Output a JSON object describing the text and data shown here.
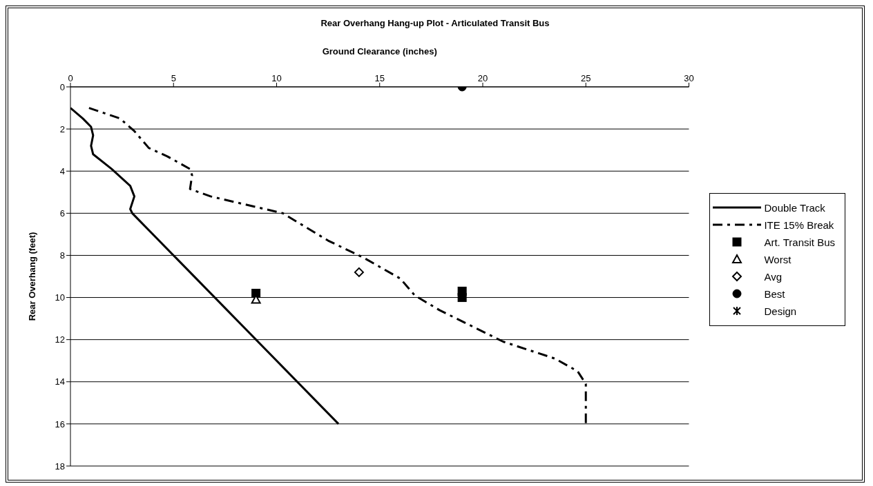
{
  "chart_data": {
    "type": "scatter",
    "title": "Rear Overhang Hang-up Plot - Articulated Transit Bus",
    "xlabel": "Ground Clearance (inches)",
    "ylabel": "Rear Overhang (feet)",
    "xlim": [
      0,
      30
    ],
    "xticks": [
      0,
      5,
      10,
      15,
      20,
      25,
      30
    ],
    "ylim": [
      18,
      0
    ],
    "yticks": [
      0,
      2,
      4,
      6,
      8,
      10,
      12,
      14,
      16,
      18
    ],
    "grid": "y",
    "legend": "right",
    "series": [
      {
        "name": "Double Track",
        "type": "line",
        "color": "#000000",
        "line_style": "solid",
        "marker": "none",
        "x": [
          0,
          0.6,
          1,
          1.1,
          1,
          1.1,
          2,
          2.9,
          3.1,
          2.9,
          3,
          13
        ],
        "values": [
          1,
          1.5,
          1.9,
          2.3,
          2.8,
          3.2,
          3.9,
          4.7,
          5.2,
          5.8,
          6,
          16
        ]
      },
      {
        "name": "ITE 15% Break",
        "type": "line",
        "color": "#000000",
        "line_style": "dashed",
        "marker": "none",
        "x": [
          0.9,
          2.4,
          3.1,
          3.8,
          4.7,
          5.8,
          5.9,
          5.8,
          6.8,
          10.3,
          12.5,
          14.2,
          16,
          16.7,
          17.9,
          21,
          23.5,
          24.6,
          25,
          25
        ],
        "values": [
          1,
          1.5,
          2.1,
          2.9,
          3.3,
          3.9,
          4.2,
          4.85,
          5.2,
          6,
          7.3,
          8.1,
          9.1,
          9.9,
          10.6,
          12.1,
          12.9,
          13.5,
          14.1,
          16
        ]
      },
      {
        "name": "Art. Transit Bus",
        "color": "#000000",
        "marker": "square",
        "x": [
          9,
          19,
          19
        ],
        "values": [
          9.8,
          9.7,
          10
        ]
      },
      {
        "name": "Worst",
        "color": "#000000",
        "marker": "triangle",
        "x": [
          9
        ],
        "values": [
          10.1
        ]
      },
      {
        "name": "Avg",
        "color": "#000000",
        "marker": "diamond",
        "x": [
          14
        ],
        "values": [
          8.8
        ]
      },
      {
        "name": "Best",
        "color": "#000000",
        "marker": "circle",
        "x": [
          19
        ],
        "values": [
          0
        ]
      },
      {
        "name": "Design",
        "color": "#000000",
        "marker": "star"
      }
    ]
  }
}
